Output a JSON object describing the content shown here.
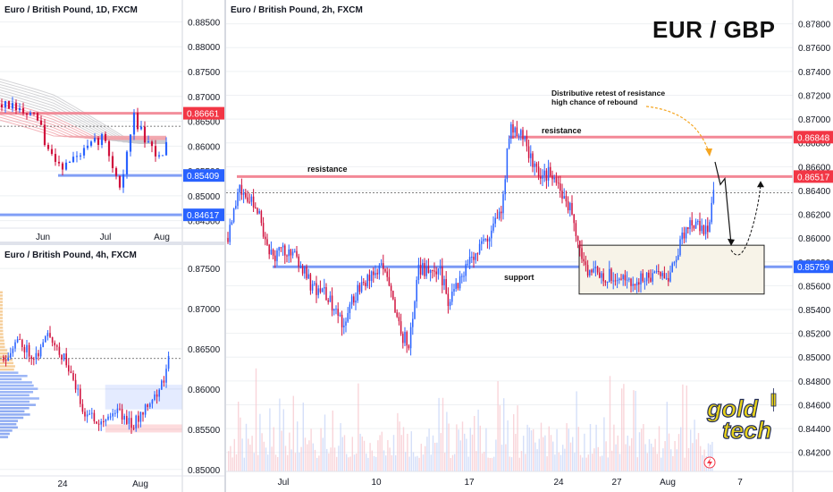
{
  "pair_title": "EUR / GBP",
  "logo": {
    "line1": "gold",
    "line2": "tech",
    "color": "#e8d21a",
    "outline": "#1f2a5a"
  },
  "colors": {
    "up": "#2962ff",
    "down": "#d0113d",
    "resistance": "#f27c8b",
    "support": "#6c8ff5",
    "badge_red": "#f23645",
    "badge_blue": "#2962ff",
    "grid": "#eef0f3",
    "box_fill": "#f7f3e8"
  },
  "chart_data": [
    {
      "id": "daily",
      "type": "candlestick",
      "title": "Euro / British Pound, 1D, FXCM",
      "ylim": [
        0.8435,
        0.8894
      ],
      "yticks": [
        "0.88500",
        "0.88000",
        "0.87500",
        "0.87000",
        "0.86500",
        "0.86000",
        "0.85500",
        "0.85000",
        "0.84500"
      ],
      "ytick_values": [
        0.885,
        0.88,
        0.875,
        0.87,
        0.865,
        0.86,
        0.855,
        0.85,
        0.845
      ],
      "xticks": [
        "Jun",
        "Jul",
        "Aug"
      ],
      "levels": [
        {
          "value": 0.86661,
          "label": "0.86661",
          "color": "#f23645"
        },
        {
          "value": 0.85409,
          "label": "0.85409",
          "color": "#2962ff"
        },
        {
          "value": 0.84617,
          "label": "0.84617",
          "color": "#2962ff"
        }
      ],
      "current_price": 0.864
    },
    {
      "id": "h4",
      "type": "candlestick",
      "title": "Euro / British Pound, 4h, FXCM",
      "ylim": [
        0.8492,
        0.8779
      ],
      "yticks": [
        "0.87500",
        "0.87000",
        "0.86500",
        "0.86000",
        "0.85500",
        "0.85000"
      ],
      "ytick_values": [
        0.875,
        0.87,
        0.865,
        0.86,
        0.855,
        0.85
      ],
      "xticks": [
        "24",
        "Aug"
      ],
      "zones": [
        {
          "from": 0.8575,
          "to": 0.8605,
          "color": "#2962ff"
        },
        {
          "from": 0.8546,
          "to": 0.8556,
          "color": "#f23645"
        }
      ],
      "current_price": 0.8638
    },
    {
      "id": "h2",
      "type": "candlestick",
      "title": "Euro / British Pound, 2h, FXCM",
      "ylim": [
        0.8404,
        0.88
      ],
      "yticks": [
        "0.87800",
        "0.87600",
        "0.87400",
        "0.87200",
        "0.87000",
        "0.86800",
        "0.86600",
        "0.86400",
        "0.86200",
        "0.86000",
        "0.85800",
        "0.85600",
        "0.85400",
        "0.85200",
        "0.85000",
        "0.84800",
        "0.84600",
        "0.84400",
        "0.84200"
      ],
      "ytick_values": [
        0.878,
        0.876,
        0.874,
        0.872,
        0.87,
        0.868,
        0.866,
        0.864,
        0.862,
        0.86,
        0.858,
        0.856,
        0.854,
        0.852,
        0.85,
        0.848,
        0.846,
        0.844,
        0.842
      ],
      "xticks": [
        "Jul",
        "10",
        "17",
        "24",
        "27",
        "Aug",
        "7"
      ],
      "levels": [
        {
          "value": 0.86848,
          "label": "0.86848",
          "color": "#f23645"
        },
        {
          "value": 0.86517,
          "label": "0.86517",
          "color": "#f23645"
        },
        {
          "value": 0.85759,
          "label": "0.85759",
          "color": "#2962ff"
        }
      ],
      "current_price": 0.8638,
      "annotations": {
        "resistance_upper": "resistance",
        "resistance_lower": "resistance",
        "support": "support",
        "note_line1": "Distributive retest of resistance",
        "note_line2": "high chance of rebound"
      },
      "box": {
        "from": 0.8553,
        "to": 0.8594
      }
    }
  ]
}
